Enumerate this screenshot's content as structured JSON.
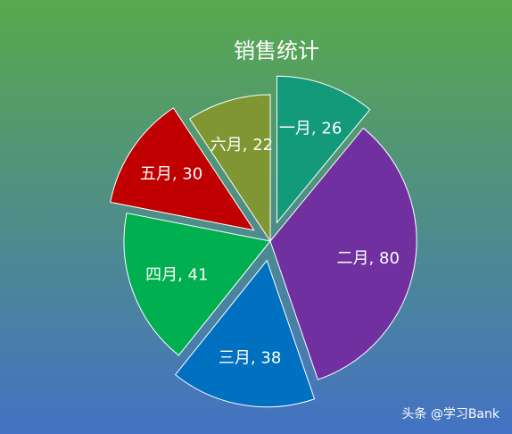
{
  "chart_data": {
    "type": "pie",
    "title": "销售统计",
    "categories": [
      "一月",
      "二月",
      "三月",
      "四月",
      "五月",
      "六月"
    ],
    "values": [
      26,
      80,
      38,
      41,
      30,
      22
    ],
    "value_labels": [
      "一月, 26",
      "二月, 80",
      "三月, 38",
      "四月, 41",
      "五月, 30",
      "六月, 22"
    ],
    "colors": [
      "#139a7a",
      "#7030a0",
      "#0070c0",
      "#00b050",
      "#c00000",
      "#7f9633"
    ],
    "explode": [
      true,
      false,
      true,
      false,
      true,
      false
    ]
  },
  "watermark": "头条 @学习Bank"
}
